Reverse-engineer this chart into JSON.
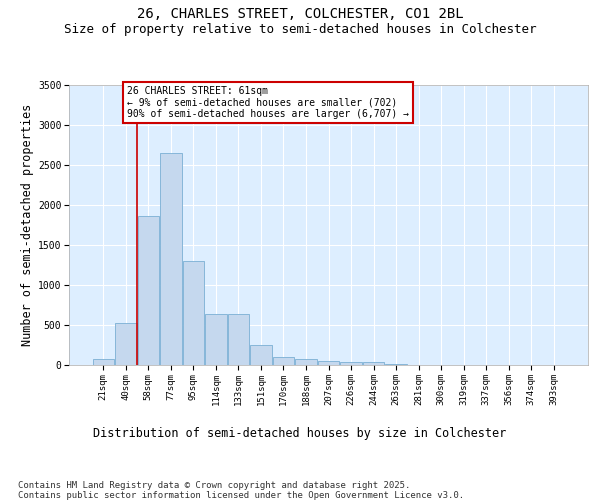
{
  "title1": "26, CHARLES STREET, COLCHESTER, CO1 2BL",
  "title2": "Size of property relative to semi-detached houses in Colchester",
  "xlabel": "Distribution of semi-detached houses by size in Colchester",
  "ylabel": "Number of semi-detached properties",
  "footnote": "Contains HM Land Registry data © Crown copyright and database right 2025.\nContains public sector information licensed under the Open Government Licence v3.0.",
  "categories": [
    "21sqm",
    "40sqm",
    "58sqm",
    "77sqm",
    "95sqm",
    "114sqm",
    "133sqm",
    "151sqm",
    "170sqm",
    "188sqm",
    "207sqm",
    "226sqm",
    "244sqm",
    "263sqm",
    "281sqm",
    "300sqm",
    "319sqm",
    "337sqm",
    "356sqm",
    "374sqm",
    "393sqm"
  ],
  "values": [
    75,
    530,
    1860,
    2650,
    1300,
    640,
    640,
    245,
    100,
    70,
    55,
    40,
    35,
    15,
    5,
    2,
    1,
    0,
    0,
    0,
    0
  ],
  "bar_color": "#c5d8ee",
  "bar_edge_color": "#7aafd4",
  "annotation_text": "26 CHARLES STREET: 61sqm\n← 9% of semi-detached houses are smaller (702)\n90% of semi-detached houses are larger (6,707) →",
  "annotation_box_color": "#ffffff",
  "annotation_box_edge": "#cc0000",
  "vline_color": "#cc0000",
  "vline_pos": 1.5,
  "ylim": [
    0,
    3500
  ],
  "yticks": [
    0,
    500,
    1000,
    1500,
    2000,
    2500,
    3000,
    3500
  ],
  "background_color": "#ddeeff",
  "grid_color": "#ffffff",
  "title_fontsize": 10,
  "subtitle_fontsize": 9,
  "axis_label_fontsize": 8.5,
  "tick_fontsize": 6.5,
  "footnote_fontsize": 6.5
}
